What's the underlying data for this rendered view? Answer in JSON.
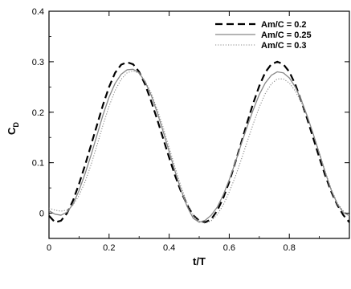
{
  "chart_data": {
    "type": "line",
    "title": "",
    "xlabel": "t/T",
    "ylabel": "C",
    "ylabel_sub": "D",
    "xlim": [
      0,
      1
    ],
    "ylim": [
      -0.05,
      0.4
    ],
    "xticks": [
      0,
      0.2,
      0.4,
      0.6,
      0.8
    ],
    "xtick_labels": [
      "0",
      "0.2",
      "0.4",
      "0.6",
      "0.8"
    ],
    "yticks": [
      0,
      0.1,
      0.2,
      0.3,
      0.4
    ],
    "ytick_labels": [
      "0",
      "0.1",
      "0.2",
      "0.3",
      "0.4"
    ],
    "grid": false,
    "legend_position": "top-right",
    "series": [
      {
        "name": "Am/C = 0.2",
        "style": "dashed",
        "color": "#000000",
        "x": [
          0,
          0.02,
          0.04,
          0.06,
          0.08,
          0.1,
          0.12,
          0.14,
          0.16,
          0.18,
          0.2,
          0.22,
          0.24,
          0.26,
          0.28,
          0.3,
          0.32,
          0.34,
          0.36,
          0.38,
          0.4,
          0.42,
          0.44,
          0.46,
          0.48,
          0.5,
          0.52,
          0.54,
          0.56,
          0.58,
          0.6,
          0.62,
          0.64,
          0.66,
          0.68,
          0.7,
          0.72,
          0.74,
          0.76,
          0.78,
          0.8,
          0.82,
          0.84,
          0.86,
          0.88,
          0.9,
          0.92,
          0.94,
          0.96,
          0.98,
          1.0
        ],
        "y": [
          -0.005,
          -0.018,
          -0.015,
          0.0,
          0.025,
          0.058,
          0.095,
          0.135,
          0.175,
          0.215,
          0.25,
          0.278,
          0.294,
          0.299,
          0.295,
          0.28,
          0.255,
          0.222,
          0.186,
          0.148,
          0.11,
          0.074,
          0.042,
          0.016,
          -0.004,
          -0.015,
          -0.018,
          -0.012,
          0.005,
          0.03,
          0.062,
          0.1,
          0.14,
          0.18,
          0.218,
          0.252,
          0.279,
          0.295,
          0.3,
          0.295,
          0.28,
          0.255,
          0.222,
          0.186,
          0.148,
          0.11,
          0.074,
          0.042,
          0.016,
          -0.004,
          -0.018
        ]
      },
      {
        "name": "Am/C = 0.25",
        "style": "solid",
        "color": "#888888",
        "x": [
          0,
          0.02,
          0.04,
          0.06,
          0.08,
          0.1,
          0.12,
          0.14,
          0.16,
          0.18,
          0.2,
          0.22,
          0.24,
          0.26,
          0.28,
          0.3,
          0.32,
          0.34,
          0.36,
          0.38,
          0.4,
          0.42,
          0.44,
          0.46,
          0.48,
          0.5,
          0.52,
          0.54,
          0.56,
          0.58,
          0.6,
          0.62,
          0.64,
          0.66,
          0.68,
          0.7,
          0.72,
          0.74,
          0.76,
          0.78,
          0.8,
          0.82,
          0.84,
          0.86,
          0.88,
          0.9,
          0.92,
          0.94,
          0.96,
          0.98,
          1.0
        ],
        "y": [
          0.005,
          -0.002,
          -0.004,
          0.002,
          0.018,
          0.045,
          0.078,
          0.115,
          0.155,
          0.195,
          0.23,
          0.257,
          0.275,
          0.284,
          0.285,
          0.278,
          0.26,
          0.234,
          0.2,
          0.162,
          0.122,
          0.082,
          0.045,
          0.013,
          -0.01,
          -0.018,
          -0.014,
          -0.004,
          0.012,
          0.036,
          0.066,
          0.1,
          0.137,
          0.172,
          0.205,
          0.235,
          0.258,
          0.273,
          0.28,
          0.278,
          0.268,
          0.25,
          0.224,
          0.192,
          0.156,
          0.118,
          0.08,
          0.045,
          0.018,
          0.001,
          -0.005
        ]
      },
      {
        "name": "Am/C = 0.3",
        "style": "dotted",
        "color": "#888888",
        "x": [
          0,
          0.02,
          0.04,
          0.06,
          0.08,
          0.1,
          0.12,
          0.14,
          0.16,
          0.18,
          0.2,
          0.22,
          0.24,
          0.26,
          0.28,
          0.3,
          0.32,
          0.34,
          0.36,
          0.38,
          0.4,
          0.42,
          0.44,
          0.46,
          0.48,
          0.5,
          0.52,
          0.54,
          0.56,
          0.58,
          0.6,
          0.62,
          0.64,
          0.66,
          0.68,
          0.7,
          0.72,
          0.74,
          0.76,
          0.78,
          0.8,
          0.82,
          0.84,
          0.86,
          0.88,
          0.9,
          0.92,
          0.94,
          0.96,
          0.98,
          1.0
        ],
        "y": [
          0.01,
          0.006,
          0.004,
          0.006,
          0.016,
          0.035,
          0.062,
          0.096,
          0.135,
          0.175,
          0.212,
          0.243,
          0.265,
          0.278,
          0.282,
          0.277,
          0.262,
          0.238,
          0.206,
          0.17,
          0.13,
          0.09,
          0.052,
          0.02,
          -0.004,
          -0.016,
          -0.02,
          -0.015,
          -0.003,
          0.016,
          0.042,
          0.072,
          0.106,
          0.142,
          0.177,
          0.21,
          0.237,
          0.256,
          0.266,
          0.266,
          0.258,
          0.242,
          0.219,
          0.19,
          0.157,
          0.12,
          0.082,
          0.047,
          0.02,
          0.004,
          -0.004
        ]
      }
    ]
  }
}
